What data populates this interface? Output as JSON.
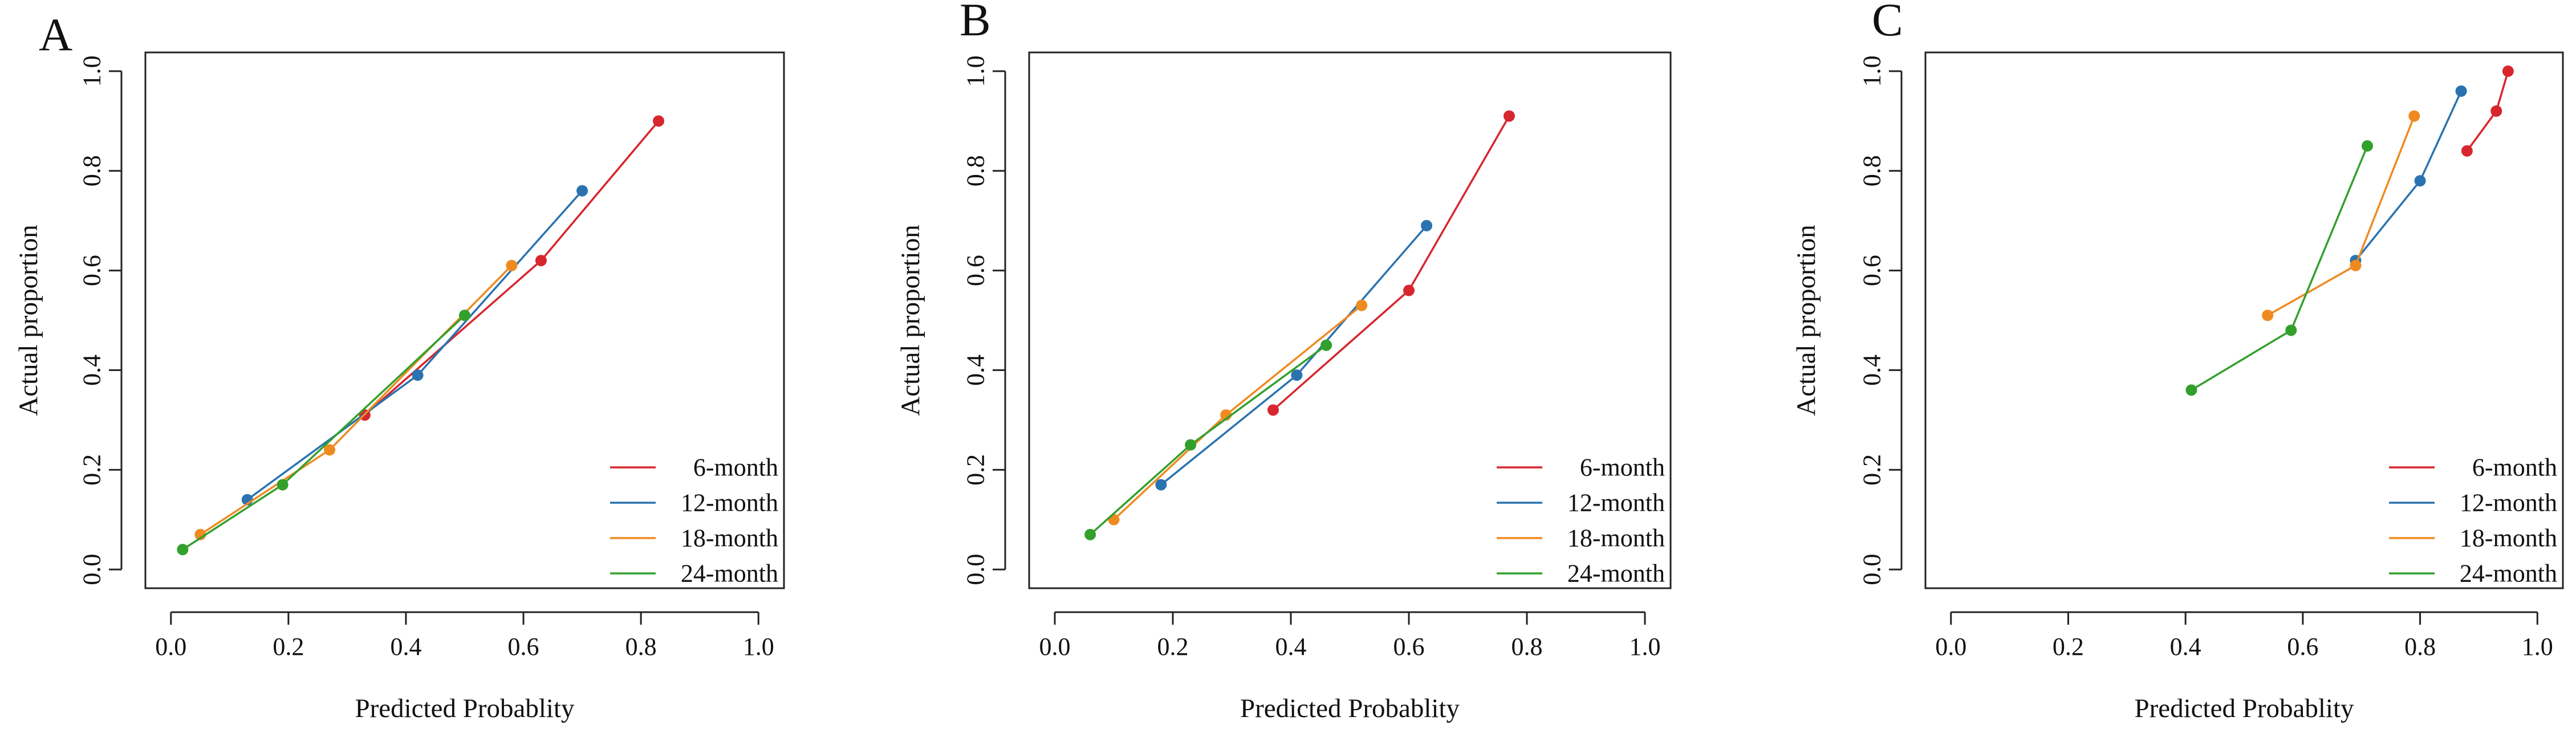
{
  "colors": {
    "6-month": "#d7262e",
    "12-month": "#2a73b0",
    "18-month": "#ef8a21",
    "24-month": "#33a02c",
    "axis": "#222222"
  },
  "chart_data": [
    {
      "type": "line",
      "panel": "A",
      "xlabel": "Predicted Probablity",
      "ylabel": "Actual proportion",
      "xlim": [
        0,
        1
      ],
      "ylim": [
        0,
        1
      ],
      "xticks": [
        "0.0",
        "0.2",
        "0.4",
        "0.6",
        "0.8",
        "1.0"
      ],
      "yticks": [
        "0.0",
        "0.2",
        "0.4",
        "0.6",
        "0.8",
        "1.0"
      ],
      "legend_position": "bottom-right",
      "series": [
        {
          "name": "6-month",
          "x": [
            0.33,
            0.63,
            0.83
          ],
          "y": [
            0.31,
            0.62,
            0.9
          ]
        },
        {
          "name": "12-month",
          "x": [
            0.13,
            0.42,
            0.7
          ],
          "y": [
            0.14,
            0.39,
            0.76
          ]
        },
        {
          "name": "18-month",
          "x": [
            0.05,
            0.27,
            0.58
          ],
          "y": [
            0.07,
            0.24,
            0.61
          ]
        },
        {
          "name": "24-month",
          "x": [
            0.02,
            0.19,
            0.5
          ],
          "y": [
            0.04,
            0.17,
            0.51
          ]
        }
      ]
    },
    {
      "type": "line",
      "panel": "B",
      "xlabel": "Predicted Probablity",
      "ylabel": "Actual proportion",
      "xlim": [
        0,
        1
      ],
      "ylim": [
        0,
        1
      ],
      "xticks": [
        "0.0",
        "0.2",
        "0.4",
        "0.6",
        "0.8",
        "1.0"
      ],
      "yticks": [
        "0.0",
        "0.2",
        "0.4",
        "0.6",
        "0.8",
        "1.0"
      ],
      "legend_position": "bottom-right",
      "series": [
        {
          "name": "6-month",
          "x": [
            0.37,
            0.6,
            0.77
          ],
          "y": [
            0.32,
            0.56,
            0.91
          ]
        },
        {
          "name": "12-month",
          "x": [
            0.18,
            0.41,
            0.63
          ],
          "y": [
            0.17,
            0.39,
            0.69
          ]
        },
        {
          "name": "18-month",
          "x": [
            0.1,
            0.29,
            0.52
          ],
          "y": [
            0.1,
            0.31,
            0.53
          ]
        },
        {
          "name": "24-month",
          "x": [
            0.06,
            0.23,
            0.46
          ],
          "y": [
            0.07,
            0.25,
            0.45
          ]
        }
      ]
    },
    {
      "type": "line",
      "panel": "C",
      "xlabel": "Predicted Probablity",
      "ylabel": "Actual proportion",
      "xlim": [
        0,
        1
      ],
      "ylim": [
        0,
        1
      ],
      "xticks": [
        "0.0",
        "0.2",
        "0.4",
        "0.6",
        "0.8",
        "1.0"
      ],
      "yticks": [
        "0.0",
        "0.2",
        "0.4",
        "0.6",
        "0.8",
        "1.0"
      ],
      "legend_position": "bottom-right",
      "series": [
        {
          "name": "6-month",
          "x": [
            0.88,
            0.93,
            0.95
          ],
          "y": [
            0.84,
            0.92,
            1.0
          ]
        },
        {
          "name": "12-month",
          "x": [
            0.69,
            0.8,
            0.87
          ],
          "y": [
            0.62,
            0.78,
            0.96
          ]
        },
        {
          "name": "18-month",
          "x": [
            0.54,
            0.69,
            0.79
          ],
          "y": [
            0.51,
            0.61,
            0.91
          ]
        },
        {
          "name": "24-month",
          "x": [
            0.41,
            0.58,
            0.71
          ],
          "y": [
            0.36,
            0.48,
            0.85
          ]
        }
      ]
    }
  ]
}
